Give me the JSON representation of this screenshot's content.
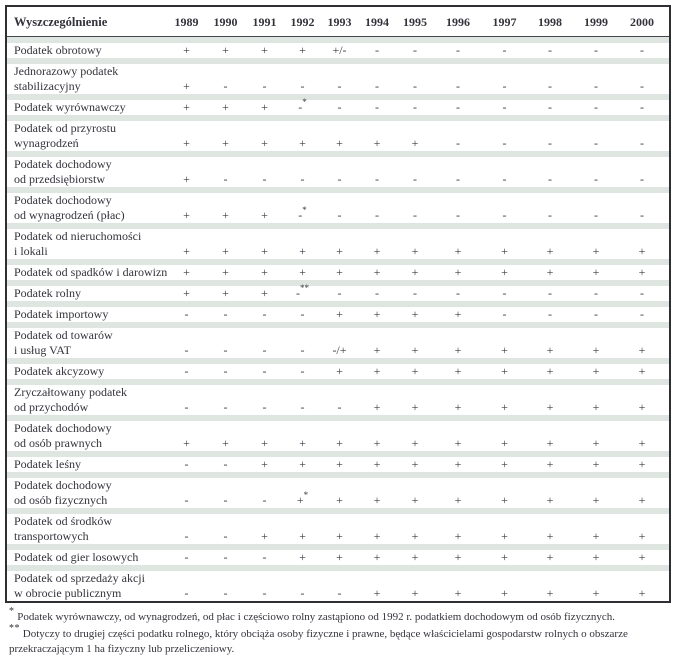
{
  "table": {
    "header": {
      "label_col": "Wyszczególnienie",
      "years": [
        "1989",
        "1990",
        "1991",
        "1992",
        "1993",
        "1994",
        "1995",
        "1996",
        "1997",
        "1998",
        "1999",
        "2000"
      ]
    },
    "rows": [
      {
        "label_lines": [
          "Podatek obrotowy"
        ],
        "values": [
          "+",
          "+",
          "+",
          "+",
          "+/-",
          "-",
          "-",
          "-",
          "-",
          "-",
          "-",
          "-"
        ]
      },
      {
        "label_lines": [
          "Jednorazowy podatek",
          "stabilizacyjny"
        ],
        "values": [
          "+",
          "-",
          "-",
          "-",
          "-",
          "-",
          "-",
          "-",
          "-",
          "-",
          "-",
          "-"
        ]
      },
      {
        "label_lines": [
          "Podatek wyrównawczy"
        ],
        "values": [
          "+",
          "+",
          "+",
          "-*",
          "-",
          "-",
          "-",
          "-",
          "-",
          "-",
          "-",
          "-"
        ]
      },
      {
        "label_lines": [
          "Podatek od przyrostu",
          "wynagrodzeń"
        ],
        "values": [
          "+",
          "+",
          "+",
          "+",
          "+",
          "+",
          "+",
          "-",
          "-",
          "-",
          "-",
          "-"
        ]
      },
      {
        "label_lines": [
          "Podatek dochodowy",
          "od przedsiębiorstw"
        ],
        "values": [
          "+",
          "-",
          "-",
          "-",
          "-",
          "-",
          "-",
          "-",
          "-",
          "-",
          "-",
          "-"
        ]
      },
      {
        "label_lines": [
          "Podatek dochodowy",
          "od wynagrodzeń (płac)"
        ],
        "values": [
          "+",
          "+",
          "+",
          "-*",
          "-",
          "-",
          "-",
          "-",
          "-",
          "-",
          "-",
          "-"
        ]
      },
      {
        "label_lines": [
          "Podatek od nieruchomości",
          "i lokali"
        ],
        "values": [
          "+",
          "+",
          "+",
          "+",
          "+",
          "+",
          "+",
          "+",
          "+",
          "+",
          "+",
          "+"
        ]
      },
      {
        "label_lines": [
          "Podatek od spadków i darowizn"
        ],
        "values": [
          "+",
          "+",
          "+",
          "+",
          "+",
          "+",
          "+",
          "+",
          "+",
          "+",
          "+",
          "+"
        ]
      },
      {
        "label_lines": [
          "Podatek rolny"
        ],
        "values": [
          "+",
          "+",
          "+",
          "-**",
          "-",
          "-",
          "-",
          "-",
          "-",
          "-",
          "-",
          "-"
        ]
      },
      {
        "label_lines": [
          "Podatek importowy"
        ],
        "values": [
          "-",
          "-",
          "-",
          "-",
          "+",
          "+",
          "+",
          "+",
          "-",
          "-",
          "-",
          "-"
        ]
      },
      {
        "label_lines": [
          "Podatek od towarów",
          "i usług VAT"
        ],
        "values": [
          "-",
          "-",
          "-",
          "-",
          "-/+",
          "+",
          "+",
          "+",
          "+",
          "+",
          "+",
          "+"
        ]
      },
      {
        "label_lines": [
          "Podatek akcyzowy"
        ],
        "values": [
          "-",
          "-",
          "-",
          "-",
          "+",
          "+",
          "+",
          "+",
          "+",
          "+",
          "+",
          "+"
        ]
      },
      {
        "label_lines": [
          "Zryczałtowany podatek",
          "od przychodów"
        ],
        "values": [
          "-",
          "-",
          "-",
          "-",
          "-",
          "+",
          "+",
          "+",
          "+",
          "+",
          "+",
          "+"
        ]
      },
      {
        "label_lines": [
          "Podatek dochodowy",
          "od osób prawnych"
        ],
        "values": [
          "+",
          "+",
          "+",
          "+",
          "+",
          "+",
          "+",
          "+",
          "+",
          "+",
          "+",
          "+"
        ]
      },
      {
        "label_lines": [
          "Podatek leśny"
        ],
        "values": [
          "-",
          "-",
          "+",
          "+",
          "+",
          "+",
          "+",
          "+",
          "+",
          "+",
          "+",
          "+"
        ]
      },
      {
        "label_lines": [
          "Podatek dochodowy",
          "od osób fizycznych"
        ],
        "values": [
          "-",
          "-",
          "-",
          "+*",
          "+",
          "+",
          "+",
          "+",
          "+",
          "+",
          "+",
          "+"
        ]
      },
      {
        "label_lines": [
          "Podatek od środków",
          "transportowych"
        ],
        "values": [
          "-",
          "-",
          "+",
          "+",
          "+",
          "+",
          "+",
          "+",
          "+",
          "+",
          "+",
          "+"
        ]
      },
      {
        "label_lines": [
          "Podatek od gier losowych"
        ],
        "values": [
          "-",
          "-",
          "-",
          "+",
          "+",
          "+",
          "+",
          "+",
          "+",
          "+",
          "+",
          "+"
        ]
      },
      {
        "label_lines": [
          "Podatek od sprzedaży akcji",
          "w obrocie publicznym"
        ],
        "values": [
          "-",
          "-",
          "-",
          "-",
          "-",
          "+",
          "+",
          "+",
          "+",
          "+",
          "+",
          "+"
        ]
      }
    ]
  },
  "footnotes": [
    {
      "marker": "*",
      "text": "Podatek wyrównawczy, od wynagrodzeń, od płac i częściowo rolny zastąpiono od 1992 r. podatkiem dochodowym od osób fizycznych."
    },
    {
      "marker": "**",
      "text": "Dotyczy to drugiej części podatku rolnego, który obciąża osoby fizyczne i prawne, będące właścicielami gospodarstw rolnych o obszarze przekraczającym 1 ha fizyczny lub przeliczeniowy."
    }
  ],
  "colors": {
    "row_band": "#dfe6e2",
    "table_border": "#2e2e33",
    "text": "#33333b",
    "background": "#ffffff"
  }
}
